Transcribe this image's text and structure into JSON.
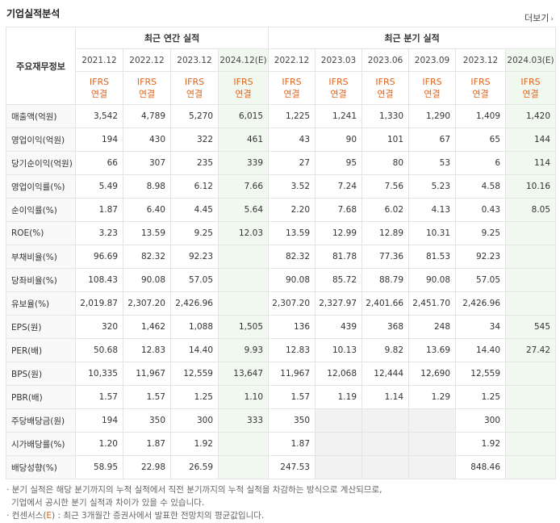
{
  "title": "기업실적분석",
  "more_label": "더보기",
  "table": {
    "row_header": "주요재무정보",
    "annual_header": "최근 연간 실적",
    "quarter_header": "최근 분기 실적",
    "annual_periods": [
      "2021.12",
      "2022.12",
      "2023.12",
      "2024.12(E)"
    ],
    "quarter_periods": [
      "2022.12",
      "2023.03",
      "2023.06",
      "2023.09",
      "2023.12",
      "2024.03(E)"
    ],
    "ifrs_line1": "IFRS",
    "ifrs_line2": "연결",
    "rows": [
      {
        "label": "매출액(억원)",
        "values": [
          "3,542",
          "4,789",
          "5,270",
          "6,015",
          "1,225",
          "1,241",
          "1,330",
          "1,290",
          "1,409",
          "1,420"
        ]
      },
      {
        "label": "영업이익(억원)",
        "values": [
          "194",
          "430",
          "322",
          "461",
          "43",
          "90",
          "101",
          "67",
          "65",
          "144"
        ]
      },
      {
        "label": "당기순이익(억원)",
        "values": [
          "66",
          "307",
          "235",
          "339",
          "27",
          "95",
          "80",
          "53",
          "6",
          "114"
        ]
      },
      {
        "label": "영업이익률(%)",
        "values": [
          "5.49",
          "8.98",
          "6.12",
          "7.66",
          "3.52",
          "7.24",
          "7.56",
          "5.23",
          "4.58",
          "10.16"
        ]
      },
      {
        "label": "순이익률(%)",
        "values": [
          "1.87",
          "6.40",
          "4.45",
          "5.64",
          "2.20",
          "7.68",
          "6.02",
          "4.13",
          "0.43",
          "8.05"
        ]
      },
      {
        "label": "ROE(%)",
        "values": [
          "3.23",
          "13.59",
          "9.25",
          "12.03",
          "13.59",
          "12.99",
          "12.89",
          "10.31",
          "9.25",
          ""
        ]
      },
      {
        "label": "부채비율(%)",
        "values": [
          "96.69",
          "82.32",
          "92.23",
          "",
          "82.32",
          "81.78",
          "77.36",
          "81.53",
          "92.23",
          ""
        ]
      },
      {
        "label": "당좌비율(%)",
        "values": [
          "108.43",
          "90.08",
          "57.05",
          "",
          "90.08",
          "85.72",
          "88.79",
          "90.08",
          "57.05",
          ""
        ]
      },
      {
        "label": "유보율(%)",
        "values": [
          "2,019.87",
          "2,307.20",
          "2,426.96",
          "",
          "2,307.20",
          "2,327.97",
          "2,401.66",
          "2,451.70",
          "2,426.96",
          ""
        ]
      },
      {
        "label": "EPS(원)",
        "values": [
          "320",
          "1,462",
          "1,088",
          "1,505",
          "136",
          "439",
          "368",
          "248",
          "34",
          "545"
        ]
      },
      {
        "label": "PER(배)",
        "values": [
          "50.68",
          "12.83",
          "14.40",
          "9.93",
          "12.83",
          "10.13",
          "9.82",
          "13.69",
          "14.40",
          "27.42"
        ]
      },
      {
        "label": "BPS(원)",
        "values": [
          "10,335",
          "11,967",
          "12,559",
          "13,647",
          "11,967",
          "12,068",
          "12,444",
          "12,690",
          "12,559",
          ""
        ]
      },
      {
        "label": "PBR(배)",
        "values": [
          "1.57",
          "1.57",
          "1.25",
          "1.10",
          "1.57",
          "1.19",
          "1.14",
          "1.29",
          "1.25",
          ""
        ]
      },
      {
        "label": "주당배당금(원)",
        "values": [
          "194",
          "350",
          "300",
          "333",
          "350",
          "",
          "",
          "",
          "300",
          ""
        ]
      },
      {
        "label": "시가배당률(%)",
        "values": [
          "1.20",
          "1.87",
          "1.92",
          "",
          "1.87",
          "",
          "",
          "",
          "1.92",
          ""
        ]
      },
      {
        "label": "배당성향(%)",
        "values": [
          "58.95",
          "22.98",
          "26.59",
          "",
          "247.53",
          "",
          "",
          "",
          "848.46",
          ""
        ]
      }
    ]
  },
  "notes": {
    "line1": "· 분기 실적은 해당 분기까지의 누적 실적에서 직전 분기까지의 누적 실적을 차감하는 방식으로 계산되므로,",
    "line2": "기업에서 공시한 분기 실적과 차이가 있을 수 있습니다.",
    "line3_prefix": "· 컨센서스(",
    "line3_e": "E",
    "line3_suffix": ") : 최근 3개월간 증권사에서 발표한 전망치의 평균값입니다."
  }
}
